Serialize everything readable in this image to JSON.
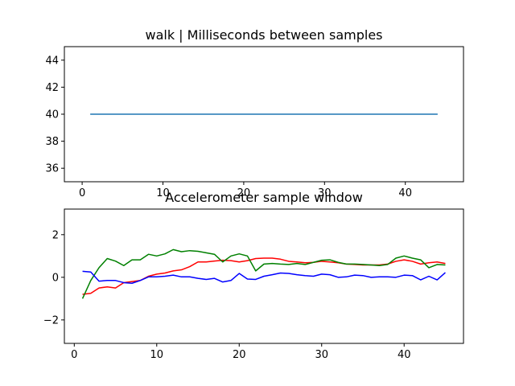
{
  "chart_data": [
    {
      "type": "line",
      "title": "walk | Milliseconds between samples",
      "xlabel": "",
      "ylabel": "",
      "xlim": [
        -2.2,
        47.2
      ],
      "ylim": [
        35,
        45
      ],
      "x_ticks": [
        0,
        10,
        20,
        30,
        40
      ],
      "y_ticks": [
        36,
        38,
        40,
        42,
        44
      ],
      "grid": false,
      "series": [
        {
          "color": "#1f77b4",
          "x": [
            1,
            2,
            3,
            4,
            5,
            6,
            7,
            8,
            9,
            10,
            11,
            12,
            13,
            14,
            15,
            16,
            17,
            18,
            19,
            20,
            21,
            22,
            23,
            24,
            25,
            26,
            27,
            28,
            29,
            30,
            31,
            32,
            33,
            34,
            35,
            36,
            37,
            38,
            39,
            40,
            41,
            42,
            43,
            44
          ],
          "y": [
            40,
            40,
            40,
            40,
            40,
            40,
            40,
            40,
            40,
            40,
            40,
            40,
            40,
            40,
            40,
            40,
            40,
            40,
            40,
            40,
            40,
            40,
            40,
            40,
            40,
            40,
            40,
            40,
            40,
            40,
            40,
            40,
            40,
            40,
            40,
            40,
            40,
            40,
            40,
            40,
            40,
            40,
            40,
            40
          ]
        }
      ]
    },
    {
      "type": "line",
      "title": "Accelerometer sample window",
      "xlabel": "",
      "ylabel": "",
      "xlim": [
        -1.2,
        47.2
      ],
      "ylim": [
        -3.1,
        3.2
      ],
      "x_ticks": [
        0,
        10,
        20,
        30,
        40
      ],
      "y_ticks": [
        -2,
        0,
        2
      ],
      "grid": false,
      "series": [
        {
          "color": "#ff0000",
          "x": [
            1,
            2,
            3,
            4,
            5,
            6,
            7,
            8,
            9,
            10,
            11,
            12,
            13,
            14,
            15,
            16,
            17,
            18,
            19,
            20,
            21,
            22,
            23,
            24,
            25,
            26,
            27,
            28,
            29,
            30,
            31,
            32,
            33,
            34,
            35,
            36,
            37,
            38,
            39,
            40,
            41,
            42,
            43,
            44,
            45
          ],
          "y": [
            -0.8,
            -0.75,
            -0.5,
            -0.45,
            -0.5,
            -0.25,
            -0.2,
            -0.15,
            0.05,
            0.15,
            0.2,
            0.3,
            0.35,
            0.5,
            0.72,
            0.72,
            0.76,
            0.8,
            0.78,
            0.72,
            0.78,
            0.88,
            0.9,
            0.9,
            0.85,
            0.75,
            0.72,
            0.68,
            0.7,
            0.75,
            0.72,
            0.68,
            0.62,
            0.6,
            0.58,
            0.58,
            0.58,
            0.62,
            0.75,
            0.82,
            0.75,
            0.62,
            0.68,
            0.72,
            0.65
          ]
        },
        {
          "color": "#008000",
          "x": [
            1,
            2,
            3,
            4,
            5,
            6,
            7,
            8,
            9,
            10,
            11,
            12,
            13,
            14,
            15,
            16,
            17,
            18,
            19,
            20,
            21,
            22,
            23,
            24,
            25,
            26,
            27,
            28,
            29,
            30,
            31,
            32,
            33,
            34,
            35,
            36,
            37,
            38,
            39,
            40,
            41,
            42,
            43,
            44,
            45
          ],
          "y": [
            -1.0,
            -0.15,
            0.45,
            0.88,
            0.76,
            0.55,
            0.82,
            0.82,
            1.08,
            1.0,
            1.1,
            1.3,
            1.2,
            1.25,
            1.22,
            1.15,
            1.08,
            0.72,
            1.0,
            1.1,
            1.0,
            0.3,
            0.62,
            0.65,
            0.62,
            0.6,
            0.65,
            0.6,
            0.7,
            0.8,
            0.82,
            0.7,
            0.62,
            0.62,
            0.6,
            0.58,
            0.55,
            0.6,
            0.9,
            1.0,
            0.9,
            0.82,
            0.45,
            0.6,
            0.58
          ]
        },
        {
          "color": "#0000ff",
          "x": [
            1,
            2,
            3,
            4,
            5,
            6,
            7,
            8,
            9,
            10,
            11,
            12,
            13,
            14,
            15,
            16,
            17,
            18,
            19,
            20,
            21,
            22,
            23,
            24,
            25,
            26,
            27,
            28,
            29,
            30,
            31,
            32,
            33,
            34,
            35,
            36,
            37,
            38,
            39,
            40,
            41,
            42,
            43,
            44,
            45
          ],
          "y": [
            0.28,
            0.25,
            -0.18,
            -0.15,
            -0.15,
            -0.25,
            -0.28,
            -0.15,
            0.02,
            0.02,
            0.05,
            0.1,
            0.02,
            0.02,
            -0.05,
            -0.1,
            -0.05,
            -0.22,
            -0.15,
            0.18,
            -0.08,
            -0.1,
            0.05,
            0.12,
            0.2,
            0.18,
            0.12,
            0.08,
            0.05,
            0.15,
            0.12,
            0.0,
            0.02,
            0.1,
            0.08,
            0.0,
            0.02,
            0.02,
            0.0,
            0.1,
            0.08,
            -0.12,
            0.05,
            -0.12,
            0.22
          ]
        }
      ]
    }
  ]
}
